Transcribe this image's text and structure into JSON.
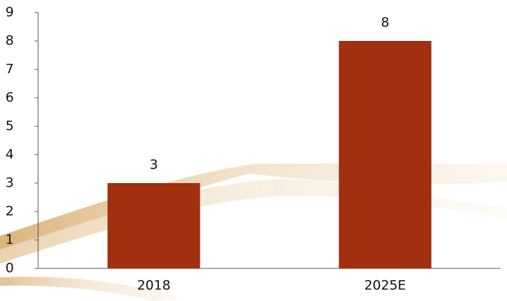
{
  "chart_data": {
    "type": "bar",
    "categories": [
      "2018",
      "2025E"
    ],
    "values": [
      3,
      8
    ],
    "color": "#a0300f",
    "ylim": [
      0,
      9
    ],
    "yticks": [
      0,
      1,
      2,
      3,
      4,
      5,
      6,
      7,
      8,
      9
    ],
    "grid": false
  }
}
